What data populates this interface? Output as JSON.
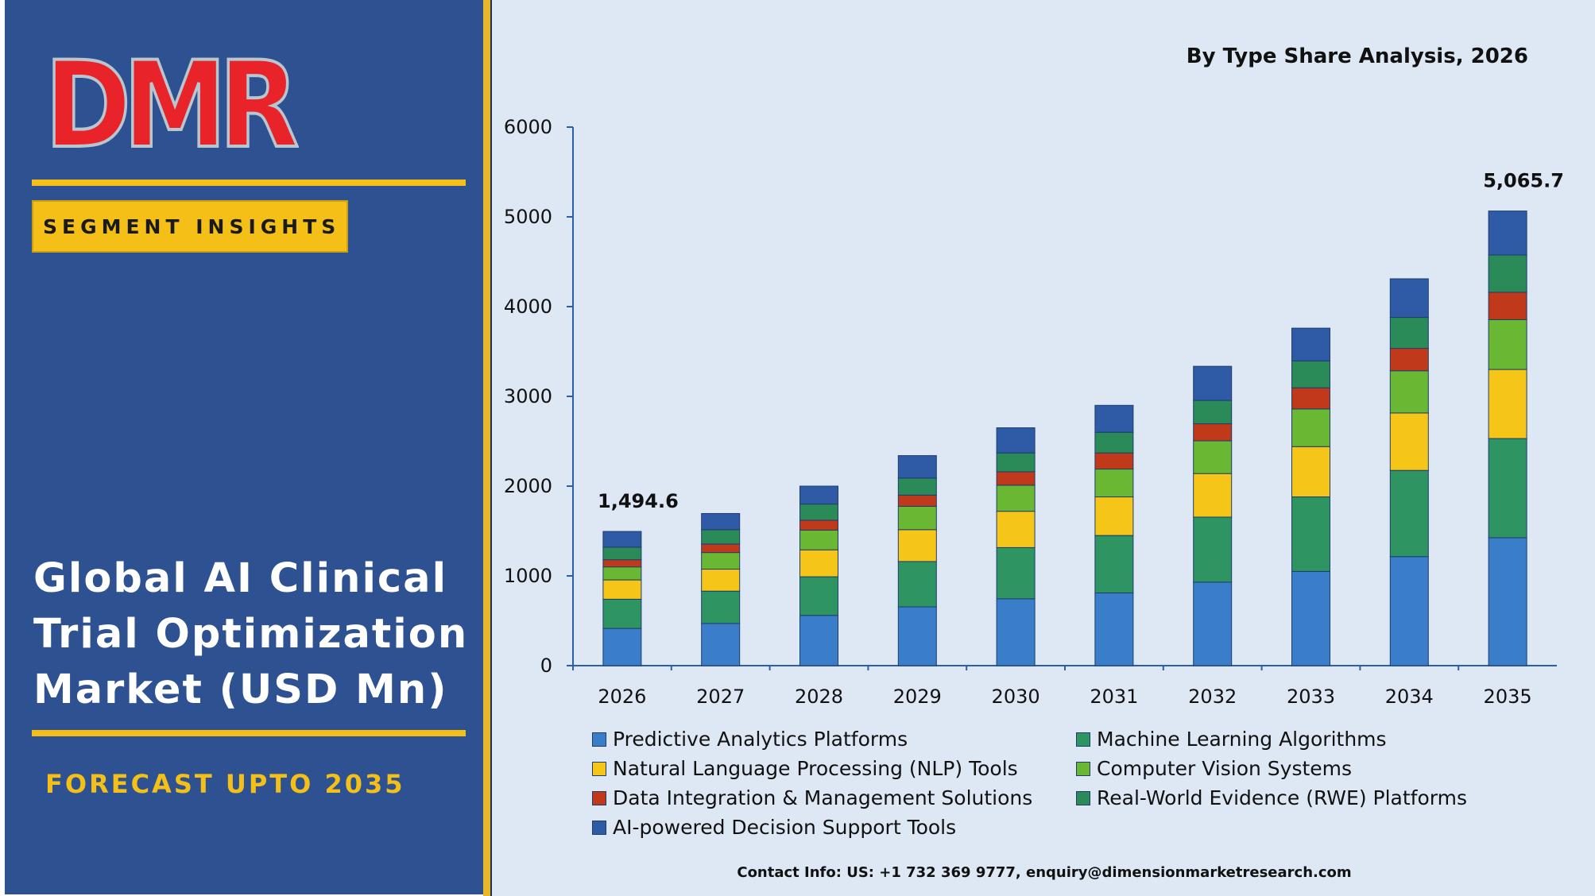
{
  "brand": {
    "logo_text": "DMR",
    "logo_colors": {
      "d": "#e8232a",
      "m": "#e8232a",
      "r": "#b8c7cf"
    }
  },
  "left_panel": {
    "segment_label": "SEGMENT INSIGHTS",
    "title_lines": [
      "Global AI Clinical",
      "Trial Optimization",
      "Market (USD Mn)"
    ],
    "forecast": "FORECAST UPTO 2035"
  },
  "footer": {
    "contact": "Contact Info: US: +1 732 369 9777, enquiry@dimensionmarketresearch.com"
  },
  "colors": {
    "panel_bg": "#2e5191",
    "accent": "#f4c018",
    "chart_bg": "#dde8f4"
  },
  "chart_data": {
    "type": "bar",
    "stacked": true,
    "title": "By Type Share Analysis, 2026",
    "xlabel": "",
    "ylabel": "",
    "ylim": [
      0,
      6000
    ],
    "yticks": [
      0,
      1000,
      2000,
      3000,
      4000,
      5000,
      6000
    ],
    "grid": false,
    "legend_position": "bottom",
    "categories": [
      "2026",
      "2027",
      "2028",
      "2029",
      "2030",
      "2031",
      "2032",
      "2033",
      "2034",
      "2035"
    ],
    "series": [
      {
        "name": "Predictive Analytics Platforms",
        "color": "#3a7dc9",
        "values": [
          415,
          470,
          560,
          655,
          745,
          810,
          930,
          1050,
          1215,
          1425
        ]
      },
      {
        "name": "Machine Learning Algorithms",
        "color": "#2e9462",
        "values": [
          325,
          360,
          430,
          505,
          570,
          640,
          725,
          830,
          960,
          1105
        ]
      },
      {
        "name": "Natural Language Processing (NLP) Tools",
        "color": "#f5c518",
        "values": [
          215,
          245,
          300,
          355,
          405,
          430,
          485,
          560,
          640,
          770
        ]
      },
      {
        "name": "Computer Vision Systems",
        "color": "#6ab733",
        "values": [
          145,
          185,
          220,
          260,
          290,
          310,
          365,
          420,
          470,
          555
        ]
      },
      {
        "name": "Data Integration & Management Solutions",
        "color": "#c0391b",
        "values": [
          80,
          95,
          110,
          125,
          150,
          180,
          190,
          235,
          250,
          305
        ]
      },
      {
        "name": "Real-World Evidence (RWE) Platforms",
        "color": "#2a8a58",
        "values": [
          140,
          160,
          180,
          190,
          210,
          230,
          260,
          300,
          345,
          415
        ]
      },
      {
        "name": "AI-powered Decision Support Tools",
        "color": "#2f5aa6",
        "values": [
          175,
          180,
          200,
          250,
          280,
          300,
          380,
          365,
          430,
          490
        ]
      }
    ],
    "annotations": [
      {
        "category": "2026",
        "text": "1,494.6"
      },
      {
        "category": "2035",
        "text": "5,065.7"
      }
    ]
  }
}
